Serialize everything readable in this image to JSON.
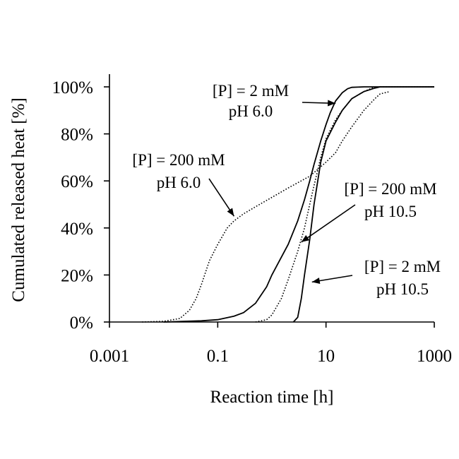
{
  "chart_data": {
    "type": "line",
    "title": "",
    "xlabel": "Reaction time [h]",
    "ylabel": "Cumulated released heat [%]",
    "x_scale": "log",
    "xlim": [
      0.001,
      1000
    ],
    "ylim": [
      0,
      100
    ],
    "x_ticks": [
      0.001,
      0.1,
      10,
      1000
    ],
    "x_tick_labels": [
      "0.001",
      "0.1",
      "10",
      "1000"
    ],
    "y_ticks": [
      0,
      20,
      40,
      60,
      80,
      100
    ],
    "y_tick_labels": [
      "0%",
      "20%",
      "40%",
      "60%",
      "80%",
      "100%"
    ],
    "grid": false,
    "legend": "none",
    "series": [
      {
        "key": "p2-ph6",
        "style": "solid",
        "points": [
          [
            0.01,
            0
          ],
          [
            0.05,
            0.5
          ],
          [
            0.1,
            1
          ],
          [
            0.2,
            2.5
          ],
          [
            0.3,
            4
          ],
          [
            0.5,
            8
          ],
          [
            0.8,
            15
          ],
          [
            1,
            20
          ],
          [
            2,
            33
          ],
          [
            3,
            43
          ],
          [
            4,
            52
          ],
          [
            5,
            60
          ],
          [
            6,
            67
          ],
          [
            8,
            77
          ],
          [
            10,
            84
          ],
          [
            12,
            89
          ],
          [
            15,
            94
          ],
          [
            20,
            97.5
          ],
          [
            25,
            99.2
          ],
          [
            30,
            99.8
          ],
          [
            50,
            100
          ],
          [
            100,
            100
          ],
          [
            1000,
            100
          ]
        ]
      },
      {
        "key": "p200-ph6",
        "style": "dotted",
        "points": [
          [
            0.004,
            0
          ],
          [
            0.01,
            0.3
          ],
          [
            0.02,
            1.5
          ],
          [
            0.03,
            5
          ],
          [
            0.04,
            10
          ],
          [
            0.05,
            16
          ],
          [
            0.07,
            26
          ],
          [
            0.1,
            33
          ],
          [
            0.15,
            40
          ],
          [
            0.2,
            43
          ],
          [
            0.3,
            46
          ],
          [
            0.5,
            49
          ],
          [
            1,
            53
          ],
          [
            2,
            57
          ],
          [
            5,
            62
          ],
          [
            8,
            66
          ],
          [
            10,
            68
          ],
          [
            15,
            72
          ],
          [
            20,
            77
          ],
          [
            30,
            83
          ],
          [
            50,
            90
          ],
          [
            80,
            95
          ],
          [
            100,
            97
          ],
          [
            150,
            98
          ]
        ]
      },
      {
        "key": "p200-ph105",
        "style": "dotted",
        "points": [
          [
            0.5,
            0
          ],
          [
            0.8,
            1
          ],
          [
            1,
            3
          ],
          [
            1.5,
            10
          ],
          [
            2,
            18
          ],
          [
            3,
            30
          ],
          [
            4,
            40
          ],
          [
            5,
            50
          ],
          [
            6,
            58
          ],
          [
            8,
            70
          ],
          [
            10,
            78
          ],
          [
            15,
            86
          ],
          [
            20,
            90
          ],
          [
            30,
            95
          ],
          [
            50,
            98
          ],
          [
            70,
            99.5
          ],
          [
            100,
            100
          ],
          [
            1000,
            100
          ]
        ]
      },
      {
        "key": "p2-ph105",
        "style": "solid",
        "points": [
          [
            2.5,
            0
          ],
          [
            3,
            2
          ],
          [
            3.5,
            10
          ],
          [
            4,
            20
          ],
          [
            5,
            35
          ],
          [
            6,
            50
          ],
          [
            8,
            68
          ],
          [
            10,
            77
          ],
          [
            15,
            85
          ],
          [
            20,
            90
          ],
          [
            30,
            95
          ],
          [
            50,
            98
          ],
          [
            80,
            99.5
          ],
          [
            100,
            100
          ],
          [
            1000,
            100
          ]
        ]
      }
    ],
    "annotations": [
      {
        "key": "a-p2-ph6",
        "lines": [
          "[P] = 2 mM",
          "pH 6.0"
        ],
        "target": [
          15,
          93
        ]
      },
      {
        "key": "a-p200-ph6",
        "lines": [
          "[P] = 200 mM",
          "pH 6.0"
        ],
        "target": [
          0.2,
          45
        ]
      },
      {
        "key": "a-p200-ph105",
        "lines": [
          "[P] = 200 mM",
          "pH 10.5"
        ],
        "target": [
          3.5,
          34
        ]
      },
      {
        "key": "a-p2-ph105",
        "lines": [
          "[P] = 2 mM",
          "pH 10.5"
        ],
        "target": [
          5.5,
          17
        ]
      }
    ]
  }
}
